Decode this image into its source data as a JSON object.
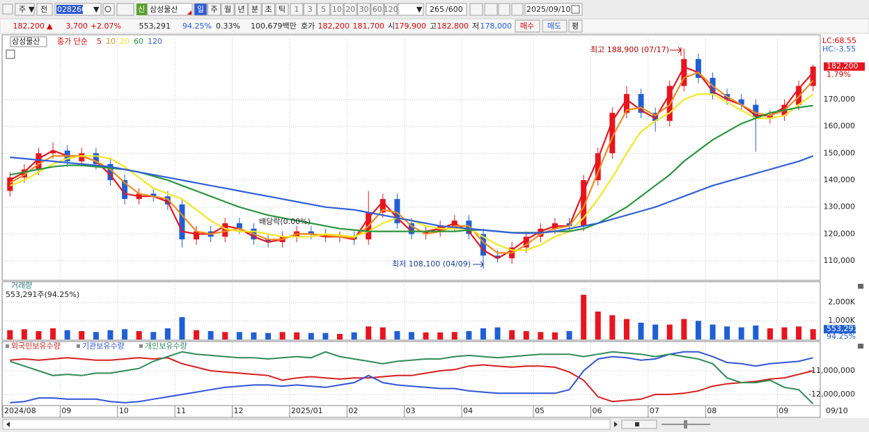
{
  "toolbar": {
    "period_type": "주",
    "range": "전",
    "code": "028260",
    "badge": "신",
    "name": "삼성물산",
    "periods": [
      "일",
      "주",
      "월",
      "년",
      "분",
      "초",
      "틱"
    ],
    "intervals": [
      "1",
      "3",
      "5",
      "10",
      "20",
      "30",
      "60",
      "120"
    ],
    "count": "265",
    "max_count": "/600",
    "date": "2025/09/10"
  },
  "quote": {
    "price": "182,200",
    "arrow": "▲",
    "change": "3,700",
    "change_pct": "+2.07%",
    "volume": "553,291",
    "volume_ratio": "94.25%",
    "turnover": "0.33%",
    "amount": "100,679백만",
    "ask_label": "호가",
    "ask": "182,200",
    "bid": "181,700",
    "open_label": "시",
    "open": "179,900",
    "high_label": "고",
    "high": "182,800",
    "low_label": "저",
    "low": "178,000",
    "buy": "매수",
    "sell": "매도",
    "avg": "평"
  },
  "chart_data": [
    {
      "type": "candlestick",
      "title": "삼성물산",
      "legend_title": "종가 단순",
      "categories": [
        "2024/08",
        null,
        null,
        null,
        "09",
        null,
        null,
        null,
        "10",
        null,
        null,
        null,
        "11",
        null,
        null,
        null,
        "12",
        null,
        null,
        null,
        "2025/01",
        null,
        null,
        null,
        "02",
        null,
        null,
        null,
        "03",
        null,
        null,
        null,
        "04",
        null,
        null,
        null,
        null,
        "05",
        null,
        null,
        null,
        "06",
        null,
        null,
        null,
        "07",
        null,
        null,
        null,
        "08",
        null,
        null,
        null,
        null,
        "09",
        null,
        null
      ],
      "open": [
        136000,
        141000,
        144000,
        150000,
        151000,
        147000,
        150000,
        146000,
        140000,
        133000,
        135000,
        134000,
        131000,
        118000,
        121000,
        119000,
        124000,
        122000,
        118000,
        117000,
        119000,
        121000,
        120000,
        119000,
        119000,
        118000,
        128000,
        133000,
        124000,
        120000,
        121000,
        123000,
        125000,
        120000,
        112000,
        111000,
        115000,
        119000,
        122000,
        124000,
        123000,
        140000,
        150000,
        165000,
        172000,
        165000,
        162000,
        175000,
        185000,
        178000,
        172000,
        170000,
        168000,
        163000,
        164000,
        168000,
        175000
      ],
      "high": [
        143000,
        146000,
        152000,
        154000,
        153000,
        152000,
        152000,
        148000,
        142000,
        137000,
        137000,
        136000,
        133000,
        123000,
        123000,
        126000,
        126000,
        124000,
        120000,
        121000,
        123000,
        123000,
        122000,
        121000,
        121000,
        136000,
        135000,
        135000,
        126000,
        123000,
        125000,
        127000,
        127000,
        122000,
        114000,
        117000,
        121000,
        124000,
        126000,
        126000,
        142000,
        152000,
        167000,
        175000,
        174000,
        167000,
        177000,
        188900,
        187000,
        180000,
        174000,
        172000,
        170000,
        166000,
        170000,
        177000,
        183000
      ],
      "low": [
        134000,
        139000,
        142000,
        148000,
        145000,
        145000,
        144000,
        138000,
        131000,
        131000,
        132000,
        129000,
        115000,
        116000,
        117000,
        117000,
        120000,
        116000,
        115000,
        115000,
        117000,
        118000,
        117000,
        117000,
        116000,
        116000,
        126000,
        122000,
        118000,
        118000,
        119000,
        121000,
        118000,
        108100,
        109500,
        109000,
        113000,
        117000,
        120000,
        121000,
        121000,
        138000,
        148000,
        163000,
        163000,
        158000,
        160000,
        173000,
        176000,
        170000,
        168000,
        166000,
        150500,
        161000,
        162000,
        166000,
        173000
      ],
      "close": [
        141000,
        144000,
        150000,
        151000,
        147000,
        150000,
        146000,
        140000,
        133000,
        135000,
        134000,
        131000,
        118000,
        121000,
        119000,
        124000,
        122000,
        118000,
        117000,
        119000,
        121000,
        120000,
        119000,
        119000,
        118000,
        128000,
        133000,
        124000,
        120000,
        121000,
        123000,
        125000,
        120000,
        112000,
        111000,
        115000,
        119000,
        122000,
        124000,
        123000,
        140000,
        150000,
        165000,
        172000,
        165000,
        162000,
        175000,
        185000,
        178000,
        172000,
        170000,
        168000,
        163000,
        164000,
        168000,
        175000,
        182200
      ],
      "up_color": "#e8141e",
      "down_color": "#1f5fd6",
      "series": [
        {
          "name": "5",
          "color": "#e8141e",
          "values": [
            140000,
            143000,
            148000,
            151000,
            149000,
            149000,
            147000,
            142000,
            135000,
            134000,
            134000,
            132000,
            121000,
            120000,
            120000,
            123000,
            122000,
            119000,
            117000,
            118000,
            120000,
            120000,
            119000,
            119000,
            118000,
            126000,
            132000,
            126000,
            121000,
            121000,
            122000,
            124000,
            121000,
            114000,
            111000,
            114000,
            118000,
            121000,
            123000,
            123000,
            136000,
            148000,
            162000,
            170000,
            166000,
            163000,
            172000,
            182000,
            180000,
            173000,
            170000,
            168000,
            164000,
            164000,
            167000,
            174000,
            180000
          ]
        },
        {
          "name": "10",
          "color": "#f08c1e",
          "values": [
            139000,
            142000,
            146000,
            149000,
            149000,
            149000,
            147000,
            144000,
            139000,
            135000,
            134000,
            133000,
            127000,
            121000,
            120000,
            121000,
            122000,
            120000,
            118000,
            118000,
            120000,
            120000,
            119500,
            119000,
            118500,
            123000,
            129000,
            128000,
            123000,
            120000,
            121000,
            123000,
            123000,
            117000,
            113000,
            113000,
            116000,
            120000,
            122000,
            123000,
            130000,
            143000,
            156000,
            166000,
            167000,
            164000,
            168000,
            178000,
            180000,
            175000,
            171000,
            168000,
            165000,
            164000,
            166000,
            171000,
            177000
          ]
        },
        {
          "name": "20",
          "color": "#f5e61e",
          "values": [
            138000,
            140000,
            143000,
            146000,
            148000,
            149000,
            149000,
            148000,
            145000,
            141000,
            137000,
            135000,
            133000,
            129000,
            125000,
            122000,
            121000,
            121000,
            120000,
            119000,
            119000,
            119000,
            120000,
            119500,
            119000,
            121000,
            124000,
            126000,
            125000,
            123000,
            122000,
            122000,
            122000,
            119000,
            116000,
            114000,
            114000,
            116000,
            119000,
            121000,
            126000,
            133000,
            141000,
            150000,
            158000,
            162000,
            165000,
            170000,
            172000,
            172000,
            169000,
            166000,
            163000,
            163000,
            164000,
            168000,
            172000
          ]
        },
        {
          "name": "60",
          "color": "#28963c",
          "values": [
            142000,
            143000,
            144000,
            145000,
            145500,
            145500,
            145000,
            144500,
            144000,
            143000,
            141500,
            140000,
            138000,
            136000,
            134000,
            132000,
            130000,
            128500,
            127000,
            126000,
            125000,
            124000,
            123000,
            122000,
            121500,
            121000,
            121000,
            121000,
            121000,
            121000,
            121000,
            121000,
            121500,
            121500,
            121000,
            120500,
            120500,
            120500,
            121000,
            121000,
            122000,
            124000,
            127000,
            130000,
            134000,
            138000,
            142000,
            147000,
            151000,
            155000,
            158000,
            161000,
            163000,
            165000,
            166000,
            167000,
            167700
          ]
        },
        {
          "name": "120",
          "color": "#2f5fd8",
          "values": [
            148500,
            148000,
            147500,
            147000,
            146500,
            146000,
            145500,
            145000,
            144000,
            143000,
            142000,
            141000,
            140000,
            139000,
            138000,
            137000,
            136000,
            135000,
            134000,
            133000,
            132000,
            131000,
            130000,
            129500,
            129000,
            128000,
            127000,
            126000,
            125000,
            124000,
            123000,
            122500,
            122000,
            121500,
            121000,
            120500,
            120300,
            120500,
            121000,
            122000,
            123000,
            124000,
            125500,
            127000,
            128500,
            130000,
            132000,
            134000,
            136000,
            138000,
            139500,
            141000,
            142500,
            144000,
            145500,
            147000,
            149000
          ]
        }
      ],
      "ylim": [
        102800,
        194000
      ],
      "yticks": [
        {
          "value": 110000,
          "label": "110,000"
        },
        {
          "value": 120000,
          "label": "120,000"
        },
        {
          "value": 130000,
          "label": "130,000"
        },
        {
          "value": 140000,
          "label": "140,000"
        },
        {
          "value": 150000,
          "label": "150,000"
        },
        {
          "value": 160000,
          "label": "160,000"
        },
        {
          "value": 170000,
          "label": "170,000"
        }
      ],
      "grid": true,
      "annotations": [
        "최고 188,900 (07/17)",
        "최저 108,100 (04/09)",
        "배당락(0.00%)"
      ],
      "lc_label": "LC:68.55",
      "hc_label": "HC:-3.55",
      "last_price": {
        "value": 182200,
        "label": "182,200"
      },
      "last_change": "1.79%",
      "end_label": "09/10"
    },
    {
      "type": "bar",
      "title": "거래량",
      "info": "553,291주(94.25%)",
      "values": [
        500,
        550,
        450,
        600,
        500,
        450,
        400,
        500,
        550,
        450,
        400,
        600,
        1200,
        500,
        450,
        400,
        400,
        380,
        350,
        400,
        380,
        350,
        350,
        300,
        380,
        700,
        650,
        450,
        400,
        380,
        380,
        400,
        450,
        600,
        650,
        500,
        450,
        400,
        380,
        450,
        2400,
        1500,
        1300,
        1100,
        900,
        800,
        800,
        1100,
        1000,
        800,
        700,
        650,
        750,
        600,
        650,
        700,
        553.291
      ],
      "ylim": [
        0,
        3100
      ],
      "yticks": [
        {
          "value": 1000,
          "label": "1,000K"
        },
        {
          "value": 2000,
          "label": "2,000K"
        }
      ],
      "last_label": "553,291",
      "last_ratio": "94.25%"
    },
    {
      "type": "line",
      "series": [
        {
          "name": "외국인보유수량",
          "color": "#d81e1e",
          "values": [
            -10550000,
            -10500000,
            -10550000,
            -10500000,
            -10450000,
            -10500000,
            -10550000,
            -10550000,
            -10500000,
            -10450000,
            -10500000,
            -10450000,
            -10700000,
            -10850000,
            -11000000,
            -11050000,
            -11100000,
            -11150000,
            -11200000,
            -11400000,
            -11300000,
            -11250000,
            -11300000,
            -11350000,
            -11300000,
            -11300000,
            -11250000,
            -11200000,
            -11200000,
            -11100000,
            -11000000,
            -10950000,
            -10800000,
            -10750000,
            -10800000,
            -10850000,
            -10800000,
            -10800000,
            -10850000,
            -11050000,
            -11400000,
            -12100000,
            -12300000,
            -12250000,
            -12200000,
            -12000000,
            -12000000,
            -11950000,
            -11850000,
            -11650000,
            -11550000,
            -11500000,
            -11450000,
            -11350000,
            -11300000,
            -11150000,
            -11000000
          ]
        },
        {
          "name": "기관보유수량",
          "color": "#2f55d8",
          "values": [
            -12350000,
            -12300000,
            -12150000,
            -12150000,
            -12200000,
            -12200000,
            -12200000,
            -12300000,
            -12350000,
            -12300000,
            -12200000,
            -12100000,
            -12000000,
            -11900000,
            -11800000,
            -11700000,
            -11650000,
            -11600000,
            -11600000,
            -11650000,
            -11600000,
            -11650000,
            -11700000,
            -11600000,
            -11500000,
            -11200000,
            -11500000,
            -11600000,
            -11650000,
            -11700000,
            -11750000,
            -11750000,
            -11850000,
            -11900000,
            -11950000,
            -11950000,
            -11950000,
            -11950000,
            -11950000,
            -11800000,
            -11000000,
            -10500000,
            -10400000,
            -10450000,
            -10550000,
            -10500000,
            -10300000,
            -10200000,
            -10200000,
            -10400000,
            -10650000,
            -10700000,
            -10800000,
            -10700000,
            -10650000,
            -10600000,
            -10450000
          ]
        },
        {
          "name": "개인보유수량",
          "color": "#2e8b57",
          "values": [
            -10600000,
            -10800000,
            -11000000,
            -11200000,
            -11150000,
            -11200000,
            -11100000,
            -11100000,
            -11000000,
            -10900000,
            -10600000,
            -10400000,
            -10200000,
            -10300000,
            -10350000,
            -10400000,
            -10450000,
            -10450000,
            -10500000,
            -10450000,
            -10400000,
            -10450000,
            -10200000,
            -10400000,
            -10500000,
            -10600000,
            -10700000,
            -10600000,
            -10550000,
            -10500000,
            -10500000,
            -10400000,
            -10350000,
            -10400000,
            -10450000,
            -10400000,
            -10350000,
            -10300000,
            -10300000,
            -10300000,
            -10400000,
            -10300000,
            -10200000,
            -10250000,
            -10300000,
            -10400000,
            -10300000,
            -10400000,
            -10500000,
            -10700000,
            -11300000,
            -11500000,
            -11500000,
            -11400000,
            -11700000,
            -11800000,
            -12400000
          ]
        }
      ],
      "ylim": [
        -12471000,
        -9794000
      ],
      "yticks": [
        {
          "value": -11000000,
          "label": "-11,000,000"
        },
        {
          "value": -12000000,
          "label": "-12,000,000"
        }
      ]
    }
  ]
}
